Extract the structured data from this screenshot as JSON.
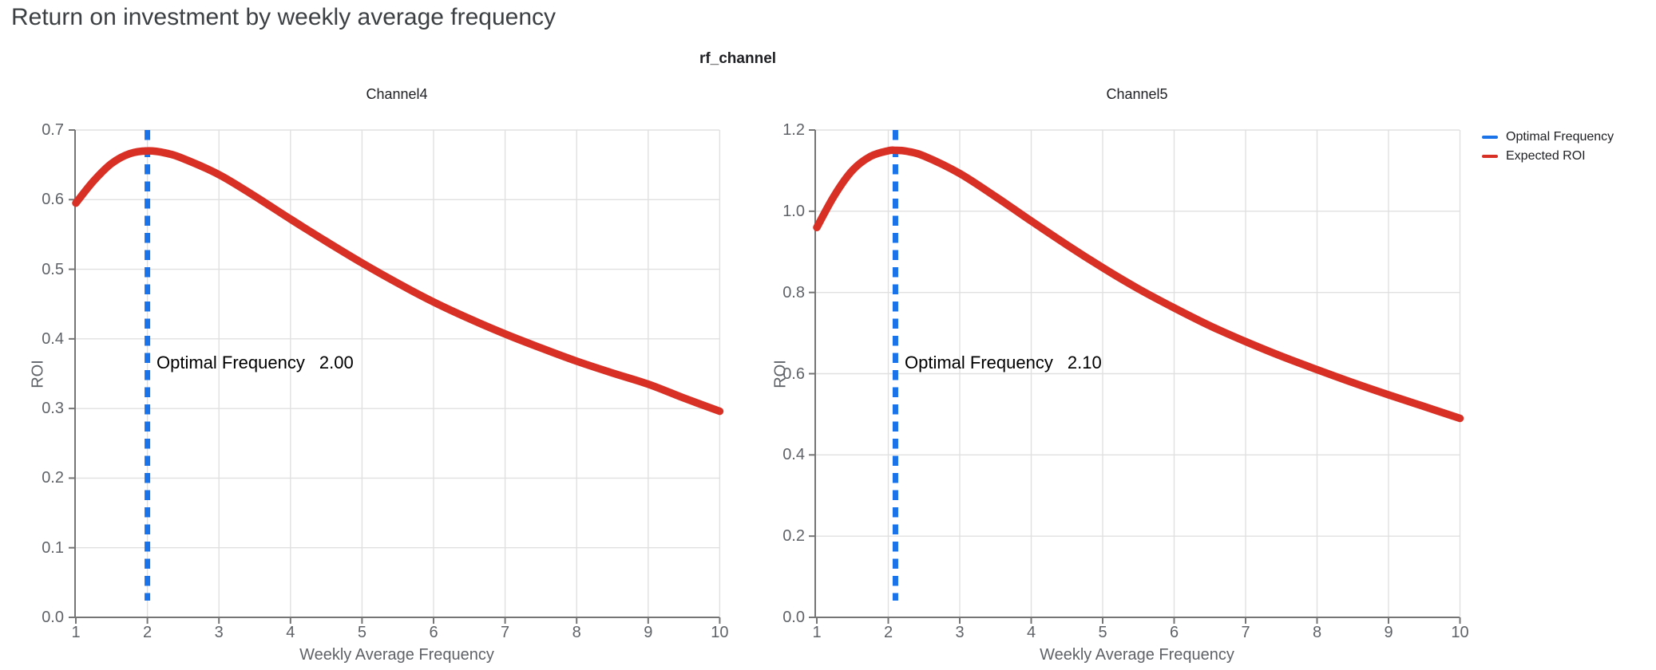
{
  "page": {
    "title": "Return on investment by weekly average frequency"
  },
  "chart_data": {
    "type": "line",
    "title": "Return on investment by weekly average frequency",
    "facet_field": "rf_channel",
    "legend": {
      "position": "top-right",
      "items": [
        {
          "label": "Optimal Frequency",
          "color": "#1A73E8",
          "style": "dashed-line"
        },
        {
          "label": "Expected ROI",
          "color": "#D93025",
          "style": "solid-line"
        }
      ]
    },
    "colors": {
      "expected_roi": "#D93025",
      "optimal_frequency": "#1A73E8",
      "grid": "#E0E0E0",
      "axis": "#757575",
      "tick_label": "#5F6368",
      "title": "#3C4043",
      "annotation": "#000000"
    },
    "facets": [
      {
        "title": "Channel4",
        "xlabel": "Weekly Average Frequency",
        "ylabel": "ROI",
        "xlim": [
          1,
          10
        ],
        "ylim": [
          0.0,
          0.7
        ],
        "xticks": [
          "1",
          "2",
          "3",
          "4",
          "5",
          "6",
          "7",
          "8",
          "9",
          "10"
        ],
        "yticks": [
          "0.0",
          "0.1",
          "0.2",
          "0.3",
          "0.4",
          "0.5",
          "0.6",
          "0.7"
        ],
        "grid": true,
        "optimal_frequency": 2.0,
        "annotation": {
          "label": "Optimal Frequency",
          "value": "2.00"
        },
        "series": [
          {
            "name": "Expected ROI",
            "x": [
              1,
              1.25,
              1.5,
              1.75,
              2,
              2.25,
              2.5,
              3,
              3.5,
              4,
              4.5,
              5,
              5.5,
              6,
              6.5,
              7,
              7.5,
              8,
              8.5,
              9,
              9.5,
              10
            ],
            "y": [
              0.595,
              0.627,
              0.652,
              0.666,
              0.67,
              0.667,
              0.659,
              0.636,
              0.605,
              0.572,
              0.54,
              0.509,
              0.48,
              0.453,
              0.429,
              0.407,
              0.387,
              0.368,
              0.351,
              0.335,
              0.315,
              0.296
            ]
          }
        ]
      },
      {
        "title": "Channel5",
        "xlabel": "Weekly Average Frequency",
        "ylabel": "ROI",
        "xlim": [
          1,
          10
        ],
        "ylim": [
          0.0,
          1.2
        ],
        "xticks": [
          "1",
          "2",
          "3",
          "4",
          "5",
          "6",
          "7",
          "8",
          "9",
          "10"
        ],
        "yticks": [
          "0.0",
          "0.2",
          "0.4",
          "0.6",
          "0.8",
          "1.0",
          "1.2"
        ],
        "grid": true,
        "optimal_frequency": 2.1,
        "annotation": {
          "label": "Optimal Frequency",
          "value": "2.10"
        },
        "series": [
          {
            "name": "Expected ROI",
            "x": [
              1,
              1.25,
              1.5,
              1.75,
              2,
              2.1,
              2.25,
              2.5,
              3,
              3.5,
              4,
              4.5,
              5,
              5.5,
              6,
              6.5,
              7,
              7.5,
              8,
              8.5,
              9,
              9.5,
              10
            ],
            "y": [
              0.96,
              1.04,
              1.101,
              1.135,
              1.149,
              1.15,
              1.148,
              1.136,
              1.093,
              1.036,
              0.976,
              0.917,
              0.861,
              0.809,
              0.762,
              0.718,
              0.679,
              0.643,
              0.61,
              0.578,
              0.548,
              0.519,
              0.49
            ]
          }
        ]
      }
    ]
  }
}
